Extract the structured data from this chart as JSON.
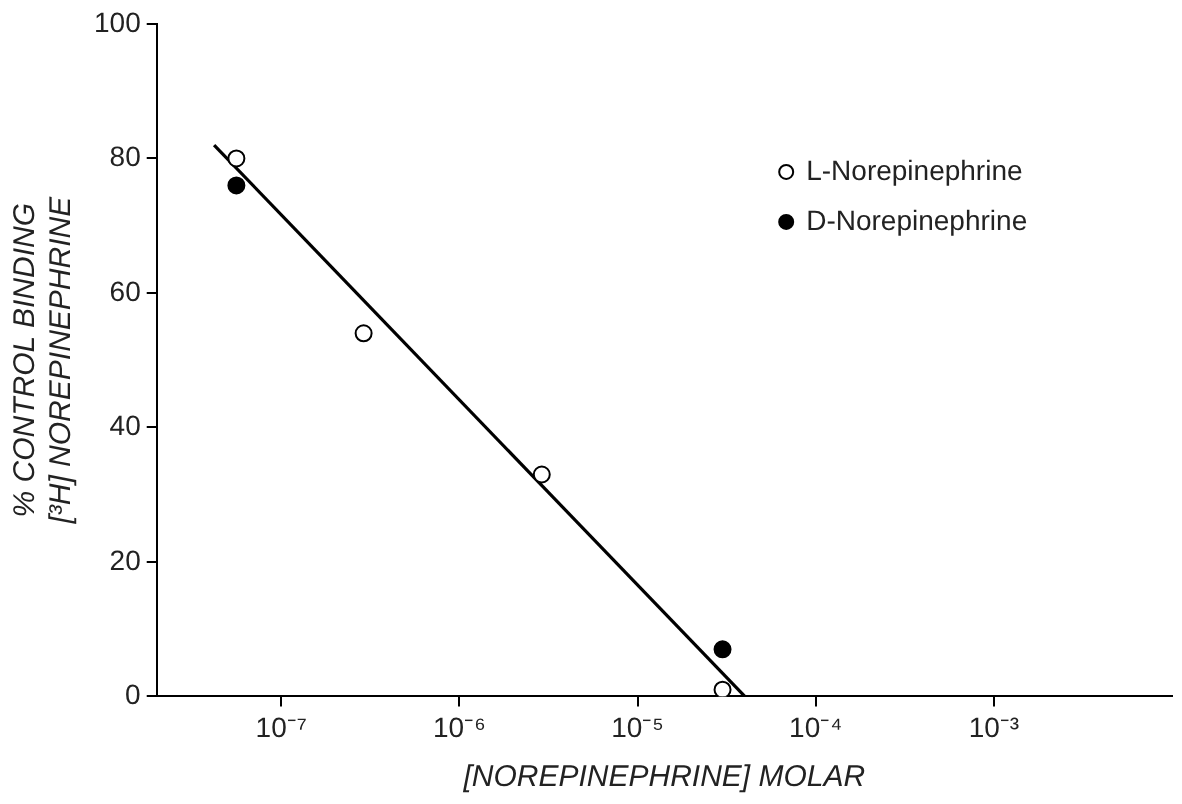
{
  "chart_data": {
    "type": "scatter",
    "xlabel": "[NOREPINEPHRINE] MOLAR",
    "ylabel": "% CONTROL BINDING\n[³H] NOREPINEPHRINE",
    "log": "x",
    "xlim": [
      2e-08,
      0.01
    ],
    "ylim": [
      0,
      100
    ],
    "xticks": [
      {
        "value": 1e-07,
        "label": "10⁻⁷"
      },
      {
        "value": 1e-06,
        "label": "10⁻⁶"
      },
      {
        "value": 1e-05,
        "label": "10⁻⁵"
      },
      {
        "value": 0.0001,
        "label": "10⁻⁴"
      },
      {
        "value": 0.001,
        "label": "10⁻³"
      }
    ],
    "yticks": [
      0,
      20,
      40,
      60,
      80,
      100
    ],
    "grid": false,
    "legend": "top right",
    "marker": "circle",
    "series": [
      {
        "name": "L-Norepinephrine",
        "color": "#ffffff",
        "x": [
          5.6e-08,
          2.9e-07,
          2.9e-06,
          3e-05
        ],
        "values": [
          80,
          54,
          33,
          1
        ]
      },
      {
        "name": "D-Norepinephrine",
        "color": "#000000",
        "x": [
          5.6e-08,
          3e-05
        ],
        "values": [
          76,
          7
        ]
      },
      {
        "type": "line",
        "marker": "none",
        "color": "#000000",
        "x": [
          4.2e-08,
          4e-05
        ],
        "values": [
          82,
          0
        ]
      }
    ]
  }
}
